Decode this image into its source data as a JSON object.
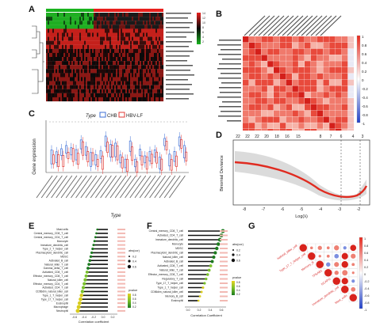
{
  "panel_labels": [
    "A",
    "B",
    "C",
    "D",
    "E",
    "F",
    "G"
  ],
  "colors": {
    "heatmap_high": "#e8201d",
    "heatmap_low": "#19b31f",
    "heatmap_mid": "#0a0a0a",
    "corr_positive": "#e8281c",
    "corr_negative": "#2140c8",
    "chb": "#3d6fd6",
    "hbv_lf": "#e23a35",
    "lasso_curve": "#e02b20",
    "lasso_band": "#8c8c8c",
    "bar_black": "#111111",
    "bar_green": "#2a9a2a",
    "label_red": "#d83030"
  },
  "panel_c": {
    "legend_title": "Type",
    "legend_items": [
      "CHB",
      "HBV-LF"
    ],
    "ylabel": "Gene expression",
    "xlabel": "Type"
  },
  "panel_d": {
    "ylabel": "Binomial Deviance",
    "xlabel": "Log(λ)",
    "top_ticks": [
      "22",
      "22",
      "22",
      "20",
      "18",
      "16",
      "15",
      "8",
      "7",
      "6",
      "4",
      "3"
    ],
    "x_ticks": [
      "-8",
      "-7",
      "-6",
      "-5",
      "-4",
      "-3",
      "-2"
    ]
  },
  "panel_e": {
    "xlabel": "Correlation coefficient",
    "x_ticks": [
      "-0.6",
      "-0.4",
      "-0.2",
      "0.0",
      "0.2"
    ],
    "rows": [
      "Mast cells",
      "Central_memory_CD8_T_cell",
      "Central_memory_CD4_T_cell",
      "Monocyte",
      "Immature_dendritic_cell",
      "Type_2_T_helper_cell",
      "Plasmacytoid_dendritic_cell",
      "MDSC",
      "Activated_B_cell",
      "Natural_killer_T_cell",
      "Gamma_delta_T_cell",
      "Activated_CD8_T_cell",
      "Effector_memory_CD8_T_cell",
      "Natural_killer_cell",
      "Effector_memory_CD4_T_cell",
      "Activated_CD4_T_cell",
      "CD56dim_natural_killer_cell",
      "Type_1_T_helper_cell",
      "Type_17_T_helper_cell",
      "Eosinophil",
      "Macrophage",
      "Neutrophil"
    ],
    "legend_size_title": "abs(cor)",
    "legend_size_values": [
      "0.2",
      "0.4",
      "0.6"
    ],
    "legend_p_title": "pvalue",
    "legend_p_values": [
      "0.8",
      "0.6",
      "0.4",
      "0.2"
    ]
  },
  "panel_f": {
    "xlabel": "Correlation Coefficient",
    "x_ticks": [
      "0.0",
      "0.2",
      "0.4",
      "0.6"
    ],
    "rows": [
      "Central_memory_CD8_T_cell",
      "Activated_CD4_T_cell",
      "Immature_dendritic_cell",
      "Monocyte",
      "MDSC",
      "Plasmacytoid_dendritic_cell",
      "Natural_killer_cell",
      "Activated_B_cell",
      "Activated_CD8_T_cell",
      "Natural_killer_T_cell",
      "Effector_memory_CD8_T_cell",
      "Regulatory_T_cell",
      "Type_17_T_helper_cell",
      "Type_1_T_helper_cell",
      "CD56dim_natural_killer_cell",
      "Memory_B_cell",
      "Eosinophil"
    ],
    "legend_size_title": "abs(cor)",
    "legend_size_values": [
      "0.2",
      "0.4",
      "0.6"
    ],
    "legend_p_title": "pvalue",
    "legend_p_values": [
      "0.8",
      "0.6",
      "0.4",
      "0.2"
    ]
  },
  "panel_g": {
    "labels": [
      "Natural_killer_cell",
      "Type_17_T_helper_cell",
      "Memory_B",
      "TPSAB1",
      "NCAPG",
      "Immature_dendritic_cell",
      "Mast_cells"
    ],
    "scale_ticks": [
      "1",
      "0.8",
      "0.6",
      "0.4",
      "0.2",
      "0",
      "-0.2",
      "-0.4",
      "-0.6",
      "-0.8",
      "-1"
    ]
  },
  "panel_b": {
    "scale_ticks": [
      "1",
      "0.8",
      "0.6",
      "0.4",
      "0.2",
      "0",
      "-0.2",
      "-0.4",
      "-0.6",
      "-0.8",
      "-1"
    ]
  },
  "panel_a": {
    "scale_ticks": [
      "14",
      "12",
      "10",
      "8",
      "6",
      "4",
      "2"
    ]
  }
}
